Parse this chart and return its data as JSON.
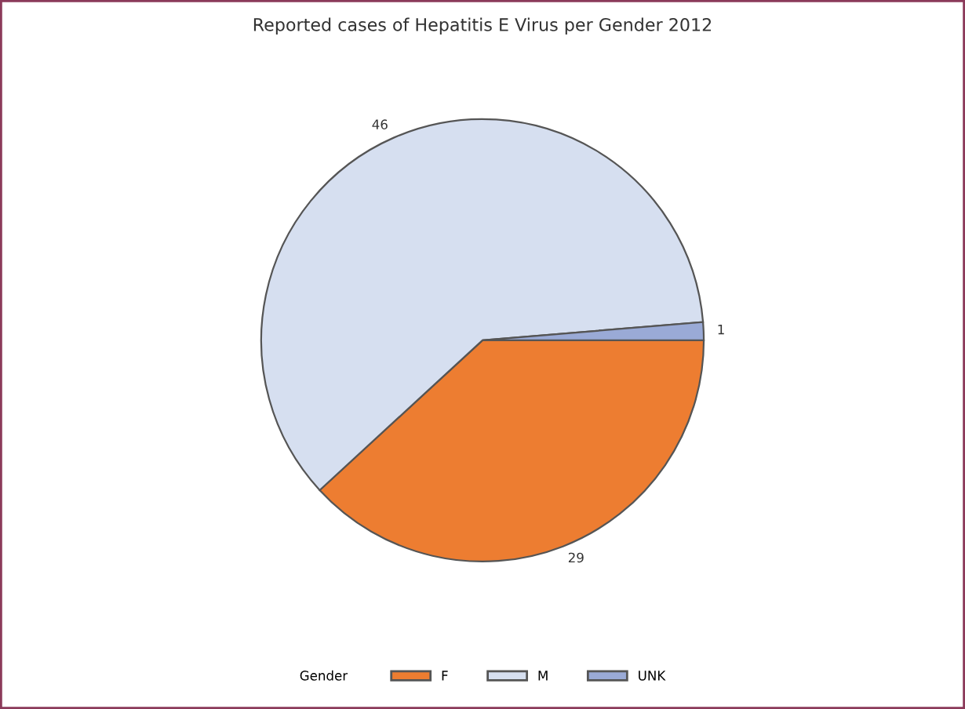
{
  "chart_data": {
    "type": "pie",
    "title": "Reported cases of Hepatitis E Virus per Gender 2012",
    "categories": [
      "F",
      "M",
      "UNK"
    ],
    "values": [
      29,
      46,
      1
    ],
    "colors": [
      "#ed7d31",
      "#d6dff0",
      "#9aaad6"
    ],
    "data_labels": true,
    "legend": "bottom",
    "legend_title": "Gender"
  }
}
